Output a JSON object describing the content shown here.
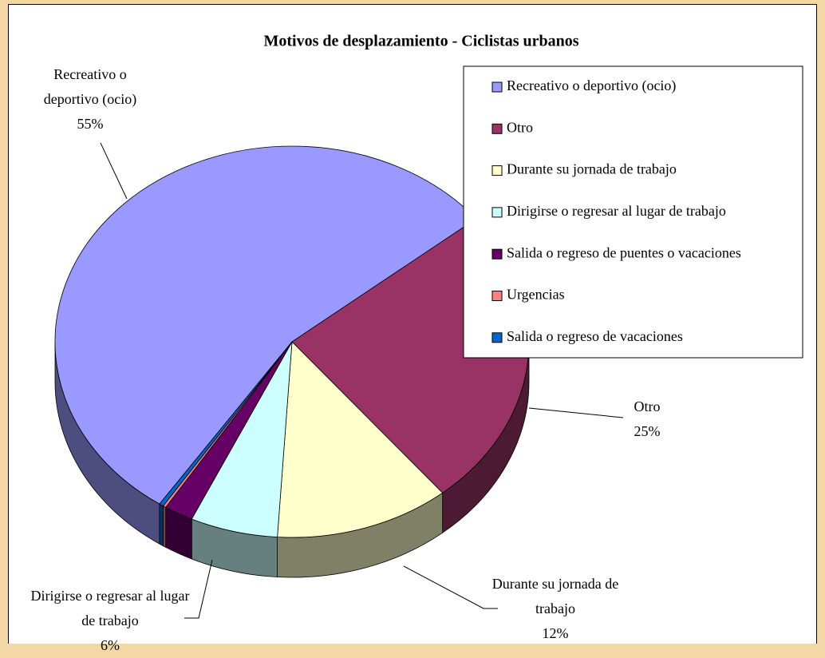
{
  "chart_data": {
    "type": "pie3d",
    "title": "Motivos de desplazamiento - Ciclistas urbanos",
    "categories": [
      "Recreativo o deportivo (ocio)",
      "Otro",
      "Durante su jornada de trabajo",
      "Dirigirse o regresar al lugar de trabajo",
      "Salida o regreso de puentes o vacaciones",
      "Urgencias",
      "Salida o regreso de vacaciones"
    ],
    "values": [
      55,
      25,
      12,
      6,
      2,
      0.2,
      0.3
    ],
    "value_labels": [
      "55%",
      "25%",
      "12%",
      "6%",
      null,
      null,
      null
    ],
    "colors": [
      "#9999ff",
      "#993366",
      "#ffffcc",
      "#ccffff",
      "#660066",
      "#ff8080",
      "#0066cc"
    ],
    "legend": "top-right"
  }
}
